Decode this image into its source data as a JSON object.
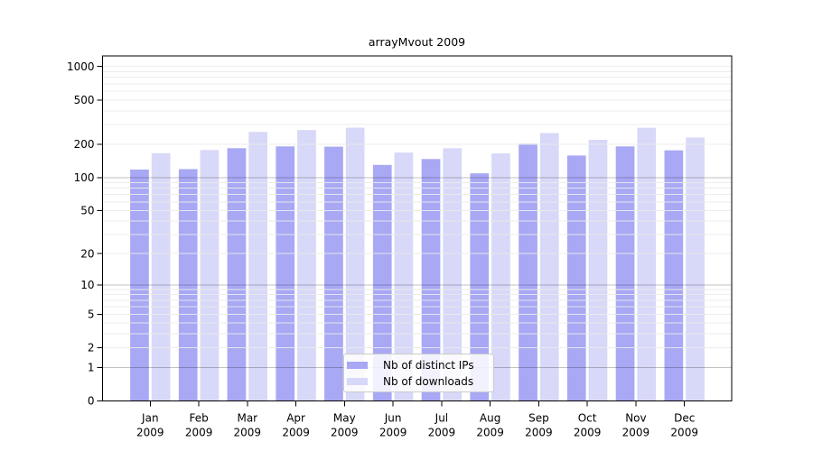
{
  "chart_data": {
    "type": "bar",
    "title": "arrayMvout 2009",
    "categories": [
      "Jan",
      "Feb",
      "Mar",
      "Apr",
      "May",
      "Jun",
      "Jul",
      "Aug",
      "Sep",
      "Oct",
      "Nov",
      "Dec"
    ],
    "year": "2009",
    "series": [
      {
        "name": "Nb of distinct IPs",
        "color": "#a8a8f5",
        "values": [
          118,
          119,
          184,
          191,
          190,
          130,
          147,
          109,
          202,
          158,
          191,
          176
        ]
      },
      {
        "name": "Nb of downloads",
        "color": "#d8d8f8",
        "values": [
          166,
          177,
          258,
          268,
          282,
          168,
          184,
          165,
          252,
          219,
          281,
          230
        ]
      }
    ],
    "y_scale": "log10(value+1)",
    "y_ticks": [
      0,
      1,
      2,
      5,
      10,
      20,
      50,
      100,
      200,
      500,
      1000
    ],
    "y_grid_major": [
      1,
      10,
      100
    ],
    "y_grid_minor_top": 1000,
    "ylim": [
      0,
      1240
    ],
    "xlabel": "",
    "ylabel": "",
    "grid": "horizontal major and minor, drawn over bars",
    "legend_position": "lower center"
  },
  "colors": {
    "distinct_ips": "#a8a8f5",
    "downloads": "#d8d8f8",
    "grid_major": "rgba(0,0,0,0.24)",
    "grid_minor": "rgba(235,235,235,0.9)",
    "spine": "#000000",
    "text": "#000000",
    "background": "#ffffff"
  }
}
